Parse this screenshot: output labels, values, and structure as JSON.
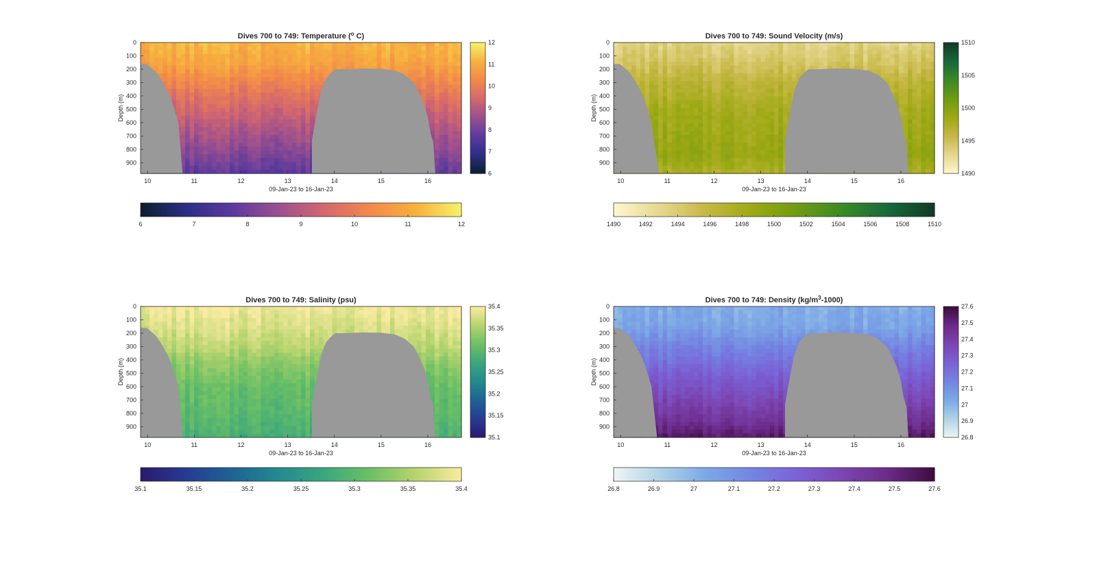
{
  "figure": {
    "background": "#ffffff",
    "land_color": "#999999"
  },
  "chart_data": [
    {
      "type": "heatmap",
      "title_prefix": "Dives 700 to 749: Temperature (",
      "title_sup": "o",
      "title_suffix": " C)",
      "xlabel": "09-Jan-23 to 16-Jan-23",
      "ylabel": "Depth (m)",
      "xlim": [
        9.85,
        16.72
      ],
      "ylim": [
        0,
        980
      ],
      "x_ticks": [
        10,
        11,
        12,
        13,
        14,
        15,
        16
      ],
      "y_ticks": [
        0,
        100,
        200,
        300,
        400,
        500,
        600,
        700,
        800,
        900
      ],
      "grid": false,
      "colormap": [
        "#0b1f2e",
        "#2b2e86",
        "#5b3a9e",
        "#9a4f8f",
        "#d3676e",
        "#f2894a",
        "#f7b03e",
        "#f5f26b"
      ],
      "clim": [
        6,
        12
      ],
      "colorbar_ticks": [
        6,
        7,
        8,
        9,
        10,
        11,
        12
      ],
      "h_colorbar_ticks": [
        6,
        7,
        8,
        9,
        10,
        11,
        12
      ],
      "profile": [
        [
          0,
          11.2
        ],
        [
          150,
          10.9
        ],
        [
          300,
          10.2
        ],
        [
          500,
          9.4
        ],
        [
          700,
          8.7
        ],
        [
          850,
          8.2
        ],
        [
          980,
          7.7
        ]
      ],
      "land_left": [
        [
          9.85,
          160
        ],
        [
          9.98,
          160
        ],
        [
          10.08,
          190
        ],
        [
          10.18,
          220
        ],
        [
          10.28,
          270
        ],
        [
          10.38,
          330
        ],
        [
          10.48,
          400
        ],
        [
          10.56,
          480
        ],
        [
          10.66,
          600
        ],
        [
          10.75,
          980
        ]
      ],
      "land_right_mound": [
        [
          13.52,
          980
        ],
        [
          13.52,
          730
        ],
        [
          13.62,
          530
        ],
        [
          13.72,
          360
        ],
        [
          13.82,
          270
        ],
        [
          13.92,
          230
        ],
        [
          14.02,
          200
        ],
        [
          14.2,
          200
        ],
        [
          14.6,
          195
        ],
        [
          15.0,
          197
        ],
        [
          15.3,
          210
        ],
        [
          15.5,
          240
        ],
        [
          15.7,
          300
        ],
        [
          15.82,
          380
        ],
        [
          15.92,
          460
        ],
        [
          16.0,
          560
        ],
        [
          16.06,
          680
        ],
        [
          16.12,
          750
        ],
        [
          16.16,
          980
        ]
      ]
    },
    {
      "type": "heatmap",
      "title_prefix": "Dives 700 to 749: Sound Velocity (m/s)",
      "title_sup": "",
      "title_suffix": "",
      "xlabel": "09-Jan-23 to 16-Jan-23",
      "ylabel": "Depth (m)",
      "xlim": [
        9.85,
        16.72
      ],
      "ylim": [
        0,
        980
      ],
      "x_ticks": [
        10,
        11,
        12,
        13,
        14,
        15,
        16
      ],
      "y_ticks": [
        0,
        100,
        200,
        300,
        400,
        500,
        600,
        700,
        800,
        900
      ],
      "grid": false,
      "colormap": [
        "#fdf7cf",
        "#e6d78f",
        "#c7b846",
        "#9ea914",
        "#6f9b12",
        "#3b8a26",
        "#17693a",
        "#123a24"
      ],
      "clim": [
        1490,
        1510
      ],
      "colorbar_ticks": [
        1490,
        1495,
        1500,
        1505,
        1510
      ],
      "h_colorbar_ticks": [
        1490,
        1492,
        1494,
        1496,
        1498,
        1500,
        1502,
        1504,
        1506,
        1508,
        1510
      ],
      "profile": [
        [
          0,
          1493.3
        ],
        [
          150,
          1494.6
        ],
        [
          300,
          1496.4
        ],
        [
          500,
          1498.0
        ],
        [
          700,
          1498.6
        ],
        [
          850,
          1499.0
        ],
        [
          980,
          1497.4
        ]
      ],
      "land_left": [
        [
          9.85,
          160
        ],
        [
          9.98,
          160
        ],
        [
          10.08,
          190
        ],
        [
          10.18,
          220
        ],
        [
          10.28,
          270
        ],
        [
          10.38,
          330
        ],
        [
          10.48,
          400
        ],
        [
          10.56,
          480
        ],
        [
          10.66,
          600
        ],
        [
          10.82,
          980
        ]
      ],
      "land_right_mound": [
        [
          13.52,
          980
        ],
        [
          13.52,
          730
        ],
        [
          13.62,
          530
        ],
        [
          13.72,
          360
        ],
        [
          13.82,
          270
        ],
        [
          13.92,
          230
        ],
        [
          14.02,
          200
        ],
        [
          14.2,
          200
        ],
        [
          14.6,
          195
        ],
        [
          15.0,
          197
        ],
        [
          15.3,
          210
        ],
        [
          15.5,
          240
        ],
        [
          15.7,
          300
        ],
        [
          15.82,
          380
        ],
        [
          15.92,
          460
        ],
        [
          16.0,
          560
        ],
        [
          16.06,
          680
        ],
        [
          16.12,
          750
        ],
        [
          16.16,
          980
        ]
      ]
    },
    {
      "type": "heatmap",
      "title_prefix": "Dives 700 to 749: Salinity (psu)",
      "title_sup": "",
      "title_suffix": "",
      "xlabel": "09-Jan-23 to 16-Jan-23",
      "ylabel": "Depth (m)",
      "xlim": [
        9.85,
        16.72
      ],
      "ylim": [
        0,
        980
      ],
      "x_ticks": [
        10,
        11,
        12,
        13,
        14,
        15,
        16
      ],
      "y_ticks": [
        0,
        100,
        200,
        300,
        400,
        500,
        600,
        700,
        800,
        900
      ],
      "grid": false,
      "colormap": [
        "#2a1a6e",
        "#273b92",
        "#1d6395",
        "#238990",
        "#3aa77c",
        "#6cc065",
        "#b6d46e",
        "#f9eba0"
      ],
      "clim": [
        35.1,
        35.4
      ],
      "colorbar_ticks": [
        35.1,
        35.15,
        35.2,
        35.25,
        35.3,
        35.35,
        35.4
      ],
      "h_colorbar_ticks": [
        35.1,
        35.15,
        35.2,
        35.25,
        35.3,
        35.35,
        35.4
      ],
      "profile": [
        [
          0,
          35.395
        ],
        [
          150,
          35.38
        ],
        [
          300,
          35.36
        ],
        [
          450,
          35.33
        ],
        [
          600,
          35.31
        ],
        [
          800,
          35.3
        ],
        [
          980,
          35.285
        ]
      ],
      "land_left": [
        [
          9.85,
          160
        ],
        [
          9.98,
          160
        ],
        [
          10.08,
          190
        ],
        [
          10.18,
          220
        ],
        [
          10.28,
          270
        ],
        [
          10.38,
          330
        ],
        [
          10.48,
          400
        ],
        [
          10.56,
          480
        ],
        [
          10.66,
          600
        ],
        [
          10.75,
          980
        ]
      ],
      "land_right_mound": [
        [
          13.52,
          980
        ],
        [
          13.52,
          730
        ],
        [
          13.62,
          530
        ],
        [
          13.72,
          360
        ],
        [
          13.82,
          270
        ],
        [
          13.92,
          230
        ],
        [
          14.02,
          200
        ],
        [
          14.2,
          200
        ],
        [
          14.6,
          195
        ],
        [
          15.0,
          197
        ],
        [
          15.3,
          210
        ],
        [
          15.5,
          240
        ],
        [
          15.7,
          300
        ],
        [
          15.82,
          380
        ],
        [
          15.92,
          460
        ],
        [
          16.0,
          560
        ],
        [
          16.06,
          680
        ],
        [
          16.12,
          750
        ],
        [
          16.16,
          980
        ]
      ]
    },
    {
      "type": "heatmap",
      "title_prefix": "Dives 700 to 749: Density (kg/m",
      "title_sup": "3",
      "title_suffix": "-1000)",
      "xlabel": "09-Jan-23 to 16-Jan-23",
      "ylabel": "Depth (m)",
      "xlim": [
        9.85,
        16.72
      ],
      "ylim": [
        0,
        980
      ],
      "x_ticks": [
        10,
        11,
        12,
        13,
        14,
        15,
        16
      ],
      "y_ticks": [
        0,
        100,
        200,
        300,
        400,
        500,
        600,
        700,
        800,
        900
      ],
      "grid": false,
      "colormap": [
        "#f0f5f5",
        "#b0d3e6",
        "#7ca9e6",
        "#7485e2",
        "#7a62d6",
        "#7c45b2",
        "#6b2a88",
        "#3c0c3e"
      ],
      "clim": [
        26.8,
        27.6
      ],
      "colorbar_ticks": [
        26.8,
        26.9,
        27,
        27.1,
        27.2,
        27.3,
        27.4,
        27.5,
        27.6
      ],
      "h_colorbar_ticks": [
        26.8,
        26.9,
        27,
        27.1,
        27.2,
        27.3,
        27.4,
        27.5,
        27.6
      ],
      "profile": [
        [
          0,
          27.02
        ],
        [
          150,
          27.04
        ],
        [
          300,
          27.14
        ],
        [
          500,
          27.26
        ],
        [
          700,
          27.36
        ],
        [
          850,
          27.44
        ],
        [
          980,
          27.54
        ]
      ],
      "land_left": [
        [
          9.85,
          160
        ],
        [
          9.98,
          160
        ],
        [
          10.08,
          190
        ],
        [
          10.18,
          220
        ],
        [
          10.28,
          270
        ],
        [
          10.38,
          330
        ],
        [
          10.48,
          400
        ],
        [
          10.56,
          480
        ],
        [
          10.66,
          600
        ],
        [
          10.78,
          980
        ]
      ],
      "land_right_mound": [
        [
          13.52,
          980
        ],
        [
          13.52,
          730
        ],
        [
          13.62,
          530
        ],
        [
          13.72,
          360
        ],
        [
          13.82,
          270
        ],
        [
          13.92,
          230
        ],
        [
          14.02,
          200
        ],
        [
          14.2,
          200
        ],
        [
          14.6,
          195
        ],
        [
          15.0,
          197
        ],
        [
          15.3,
          210
        ],
        [
          15.5,
          240
        ],
        [
          15.7,
          300
        ],
        [
          15.82,
          380
        ],
        [
          15.92,
          460
        ],
        [
          16.0,
          560
        ],
        [
          16.06,
          680
        ],
        [
          16.12,
          750
        ],
        [
          16.16,
          980
        ]
      ]
    }
  ]
}
